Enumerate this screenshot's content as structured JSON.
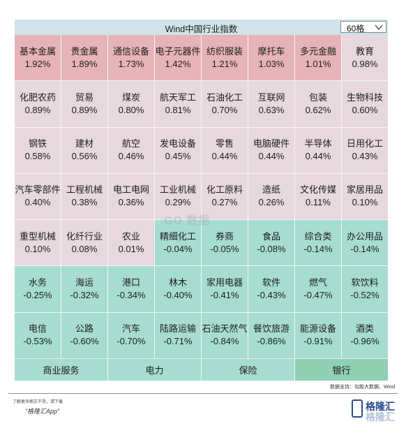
{
  "header": {
    "title": "Wind中国行业指数",
    "dropdown_value": "60格"
  },
  "grid": [
    {
      "name": "基本金属",
      "pct": "1.92%",
      "level": "strong"
    },
    {
      "name": "贵金属",
      "pct": "1.89%",
      "level": "strong"
    },
    {
      "name": "通信设备",
      "pct": "1.73%",
      "level": "strong"
    },
    {
      "name": "电子元器件",
      "pct": "1.42%",
      "level": "strong"
    },
    {
      "name": "纺织服装",
      "pct": "1.21%",
      "level": "strong"
    },
    {
      "name": "摩托车",
      "pct": "1.03%",
      "level": "strong"
    },
    {
      "name": "多元金融",
      "pct": "1.01%",
      "level": "strong"
    },
    {
      "name": "教育",
      "pct": "0.98%",
      "level": "mild"
    },
    {
      "name": "化肥农药",
      "pct": "0.89%",
      "level": "mild"
    },
    {
      "name": "贸易",
      "pct": "0.89%",
      "level": "mild"
    },
    {
      "name": "煤炭",
      "pct": "0.80%",
      "level": "mild"
    },
    {
      "name": "航天军工",
      "pct": "0.81%",
      "level": "mild"
    },
    {
      "name": "石油化工",
      "pct": "0.70%",
      "level": "mild"
    },
    {
      "name": "互联网",
      "pct": "0.63%",
      "level": "mild"
    },
    {
      "name": "包装",
      "pct": "0.62%",
      "level": "mild"
    },
    {
      "name": "生物科技",
      "pct": "0.60%",
      "level": "mild"
    },
    {
      "name": "钢铁",
      "pct": "0.58%",
      "level": "mild"
    },
    {
      "name": "建材",
      "pct": "0.56%",
      "level": "mild"
    },
    {
      "name": "航空",
      "pct": "0.46%",
      "level": "mild"
    },
    {
      "name": "发电设备",
      "pct": "0.45%",
      "level": "mild"
    },
    {
      "name": "零售",
      "pct": "0.44%",
      "level": "mild"
    },
    {
      "name": "电脑硬件",
      "pct": "0.44%",
      "level": "mild"
    },
    {
      "name": "半导体",
      "pct": "0.44%",
      "level": "mild"
    },
    {
      "name": "日用化工",
      "pct": "0.43%",
      "level": "mild"
    },
    {
      "name": "汽车零部件",
      "pct": "0.40%",
      "level": "mild"
    },
    {
      "name": "工程机械",
      "pct": "0.38%",
      "level": "mild"
    },
    {
      "name": "电工电网",
      "pct": "0.36%",
      "level": "mild"
    },
    {
      "name": "工业机械",
      "pct": "0.29%",
      "level": "mild"
    },
    {
      "name": "化工原料",
      "pct": "0.27%",
      "level": "mild"
    },
    {
      "name": "造纸",
      "pct": "0.26%",
      "level": "mild"
    },
    {
      "name": "文化传媒",
      "pct": "0.11%",
      "level": "mild"
    },
    {
      "name": "家居用品",
      "pct": "0.10%",
      "level": "mild"
    },
    {
      "name": "重型机械",
      "pct": "0.10%",
      "level": "mild"
    },
    {
      "name": "化纤行业",
      "pct": "0.08%",
      "level": "mild"
    },
    {
      "name": "农业",
      "pct": "0.01%",
      "level": "mild"
    },
    {
      "name": "精细化工",
      "pct": "-0.04%",
      "level": "down"
    },
    {
      "name": "券商",
      "pct": "-0.05%",
      "level": "down"
    },
    {
      "name": "食品",
      "pct": "-0.08%",
      "level": "down"
    },
    {
      "name": "综合类",
      "pct": "-0.14%",
      "level": "down"
    },
    {
      "name": "办公用品",
      "pct": "-0.14%",
      "level": "down"
    },
    {
      "name": "水务",
      "pct": "-0.25%",
      "level": "down"
    },
    {
      "name": "海运",
      "pct": "-0.32%",
      "level": "down"
    },
    {
      "name": "港口",
      "pct": "-0.34%",
      "level": "down"
    },
    {
      "name": "林木",
      "pct": "-0.40%",
      "level": "down"
    },
    {
      "name": "家用电器",
      "pct": "-0.41%",
      "level": "down"
    },
    {
      "name": "软件",
      "pct": "-0.43%",
      "level": "down"
    },
    {
      "name": "燃气",
      "pct": "-0.47%",
      "level": "down"
    },
    {
      "name": "软饮料",
      "pct": "-0.52%",
      "level": "down"
    },
    {
      "name": "电信",
      "pct": "-0.53%",
      "level": "down"
    },
    {
      "name": "公路",
      "pct": "-0.60%",
      "level": "down"
    },
    {
      "name": "汽车",
      "pct": "-0.70%",
      "level": "down"
    },
    {
      "name": "陆路运输",
      "pct": "-0.71%",
      "level": "down"
    },
    {
      "name": "石油天然气",
      "pct": "-0.84%",
      "level": "down"
    },
    {
      "name": "餐饮旅游",
      "pct": "-0.86%",
      "level": "down"
    },
    {
      "name": "能源设备",
      "pct": "-0.91%",
      "level": "down"
    },
    {
      "name": "酒类",
      "pct": "-0.96%",
      "level": "down"
    }
  ],
  "footer_row": [
    {
      "name": "商业服务",
      "shade": "normal"
    },
    {
      "name": "电力",
      "shade": "normal"
    },
    {
      "name": "保险",
      "shade": "normal"
    },
    {
      "name": "银行",
      "shade": "dark"
    }
  ],
  "watermark": "GO 数据",
  "source": "数据支持：勾股大数据、Wind",
  "promo": {
    "line1": "了解更多图文干货，请下载",
    "line2": "“格隆汇App”"
  },
  "logo": {
    "text": "格隆汇",
    "text_shadow": "格隆汇"
  },
  "colors": {
    "strong_up": "#e6b3b8",
    "mild_up": "#e6d8dd",
    "down": "#a7dcd0",
    "down_dark": "#8fcfb3",
    "header": "#cfe3e8"
  }
}
